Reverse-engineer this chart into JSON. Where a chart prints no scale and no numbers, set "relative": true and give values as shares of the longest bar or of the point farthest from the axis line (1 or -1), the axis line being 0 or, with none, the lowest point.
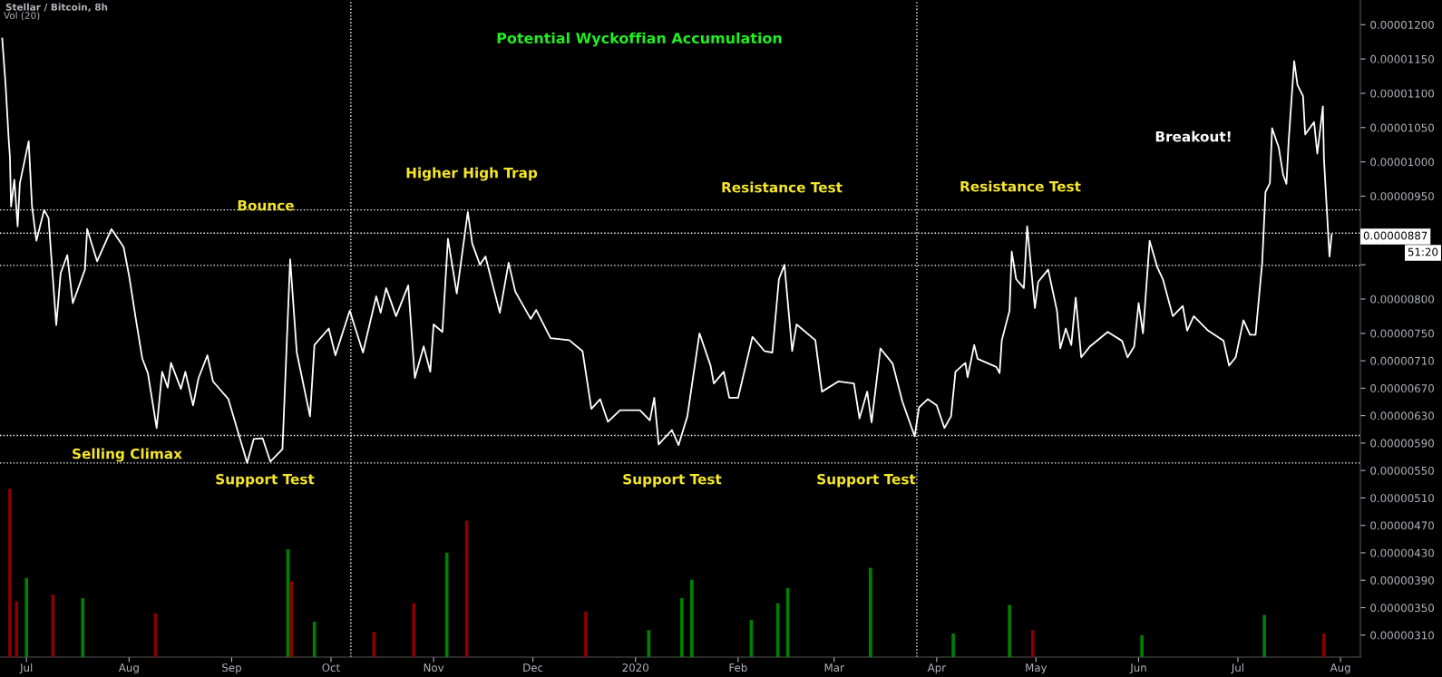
{
  "chart_data": [
    {
      "type": "line",
      "title": "Stellar / Bitcoin, 8h",
      "subtitle": "Potential Wyckoffian Accumulation",
      "x": [
        "2019-06-23T16:00",
        "2019-06-24T16:00",
        "2019-06-25T16:00",
        "2019-06-26T00:00",
        "2019-06-26T08:00",
        "2019-06-27T08:00",
        "2019-06-28T08:00",
        "2019-06-29T00:00",
        "2019-07-01T16:00",
        "2019-07-02T16:00",
        "2019-07-04T00:00",
        "2019-07-06T08:00",
        "2019-07-07T16:00",
        "2019-07-10T00:00",
        "2019-07-11T08:00",
        "2019-07-13T08:00",
        "2019-07-15T00:00",
        "2019-07-18T16:00",
        "2019-07-19T08:00",
        "2019-07-22T08:00",
        "2019-07-26T16:00",
        "2019-07-30T08:00",
        "2019-08-01T00:00",
        "2019-08-03T00:00",
        "2019-08-05T00:00",
        "2019-08-06T16:00",
        "2019-08-09T08:00",
        "2019-08-11T00:00",
        "2019-08-12T16:00",
        "2019-08-13T16:00",
        "2019-08-16T16:00",
        "2019-08-18T00:00",
        "2019-08-20T08:00",
        "2019-08-22T00:00",
        "2019-08-24T16:00",
        "2019-08-26T08:00",
        "2019-08-31T00:00",
        "2019-09-05T16:00",
        "2019-09-07T16:00",
        "2019-09-10T08:00",
        "2019-09-12T16:00",
        "2019-09-16T08:00",
        "2019-09-18T16:00",
        "2019-09-20T16:00",
        "2019-09-24T16:00",
        "2019-09-26T00:00",
        "2019-09-30T08:00",
        "2019-10-02T08:00",
        "2019-10-06T16:00",
        "2019-10-10T16:00",
        "2019-10-14T16:00",
        "2019-10-16T00:00",
        "2019-10-17T16:00",
        "2019-10-20T16:00",
        "2019-10-24T08:00",
        "2019-10-26T08:00",
        "2019-10-29T00:00",
        "2019-10-31T00:00",
        "2019-11-01T00:00",
        "2019-11-03T16:00",
        "2019-11-05T08:00",
        "2019-11-08T00:00",
        "2019-11-11T08:00",
        "2019-11-12T16:00",
        "2019-11-15T00:00",
        "2019-11-16T16:00",
        "2019-11-21T00:00",
        "2019-11-23T16:00",
        "2019-11-25T16:00",
        "2019-11-30T08:00",
        "2019-12-02T00:00",
        "2019-12-06T08:00",
        "2019-12-12T00:00",
        "2019-12-16T00:00",
        "2019-12-18T16:00",
        "2019-12-21T08:00",
        "2019-12-23T16:00",
        "2019-12-27T08:00",
        "2020-01-02T08:00",
        "2020-01-05T08:00",
        "2020-01-06T16:00",
        "2020-01-08T00:00",
        "2020-01-12T00:00",
        "2020-01-14T00:00",
        "2020-01-16T16:00",
        "2020-01-20T08:00",
        "2020-01-23T16:00",
        "2020-01-24T16:00",
        "2020-01-27T16:00",
        "2020-01-29T08:00",
        "2020-02-01T00:00",
        "2020-02-05T08:00",
        "2020-02-09T00:00",
        "2020-02-11T08:00",
        "2020-02-13T08:00",
        "2020-02-15T00:00",
        "2020-02-17T08:00",
        "2020-02-18T16:00",
        "2020-02-24T08:00",
        "2020-02-26T08:00",
        "2020-03-02T08:00",
        "2020-03-07T00:00",
        "2020-03-08T16:00",
        "2020-03-11T00:00",
        "2020-03-12T08:00",
        "2020-03-15T00:00",
        "2020-03-18T16:00",
        "2020-03-21T16:00",
        "2020-03-25T08:00",
        "2020-03-26T16:00",
        "2020-03-29T08:00",
        "2020-04-01T00:00",
        "2020-04-03T08:00",
        "2020-04-05T08:00",
        "2020-04-06T16:00",
        "2020-04-09T16:00",
        "2020-04-10T08:00",
        "2020-04-12T08:00",
        "2020-04-13T08:00",
        "2020-04-19T00:00",
        "2020-04-20T00:00",
        "2020-04-20T16:00",
        "2020-04-23T00:00",
        "2020-04-23T16:00",
        "2020-04-25T00:00",
        "2020-04-27T08:00",
        "2020-04-28T08:00",
        "2020-04-30T16:00",
        "2020-05-01T16:00",
        "2020-05-04T16:00",
        "2020-05-07T08:00",
        "2020-05-08T08:00",
        "2020-05-10T00:00",
        "2020-05-11T16:00",
        "2020-05-13T00:00",
        "2020-05-14T16:00",
        "2020-05-17T08:00",
        "2020-05-22T16:00",
        "2020-05-27T00:00",
        "2020-05-28T16:00",
        "2020-05-30T16:00",
        "2020-06-01T00:00",
        "2020-06-02T08:00",
        "2020-06-04T08:00",
        "2020-06-06T16:00",
        "2020-06-08T08:00",
        "2020-06-11T08:00",
        "2020-06-14T08:00",
        "2020-06-15T16:00",
        "2020-06-17T16:00",
        "2020-06-22T00:00",
        "2020-06-26T16:00",
        "2020-06-28T08:00",
        "2020-06-30T08:00",
        "2020-07-02T16:00",
        "2020-07-04T16:00",
        "2020-07-06T08:00",
        "2020-07-08T08:00",
        "2020-07-09T08:00",
        "2020-07-10T16:00",
        "2020-07-11T08:00",
        "2020-07-13T08:00",
        "2020-07-14T16:00",
        "2020-07-15T16:00",
        "2020-07-16T08:00",
        "2020-07-18T00:00",
        "2020-07-19T00:00",
        "2020-07-20T16:00",
        "2020-07-21T08:00",
        "2020-07-24T00:00",
        "2020-07-25T00:00",
        "2020-07-26T16:00",
        "2020-07-27T00:00",
        "2020-07-28T16:00",
        "2020-07-29T08:00"
      ],
      "series": [
        {
          "color": "#ffffff",
          "values": [
            1.18e-05,
            1.114e-05,
            1.03e-05,
            1.007e-05,
            9.35e-06,
            9.74e-06,
            9.06e-06,
            9.69e-06,
            1.03e-05,
            9.36e-06,
            8.85e-06,
            9.3e-06,
            9.18e-06,
            7.62e-06,
            8.38e-06,
            8.64e-06,
            7.94e-06,
            8.43e-06,
            9.02e-06,
            8.55e-06,
            9.02e-06,
            8.76e-06,
            8.34e-06,
            7.72e-06,
            7.13e-06,
            6.92e-06,
            6.12e-06,
            6.94e-06,
            6.71e-06,
            7.07e-06,
            6.69e-06,
            6.94e-06,
            6.45e-06,
            6.85e-06,
            7.18e-06,
            6.8e-06,
            6.54e-06,
            5.61e-06,
            5.96e-06,
            5.97e-06,
            5.63e-06,
            5.81e-06,
            8.58e-06,
            7.22e-06,
            6.29e-06,
            7.33e-06,
            7.57e-06,
            7.18e-06,
            7.83e-06,
            7.22e-06,
            8.04e-06,
            7.8e-06,
            8.16e-06,
            7.75e-06,
            8.2e-06,
            6.85e-06,
            7.31e-06,
            6.94e-06,
            7.63e-06,
            7.52e-06,
            8.88e-06,
            8.08e-06,
            9.27e-06,
            8.81e-06,
            8.5e-06,
            8.62e-06,
            7.8e-06,
            8.53e-06,
            8.11e-06,
            7.71e-06,
            7.84e-06,
            7.43e-06,
            7.4e-06,
            7.24e-06,
            6.4e-06,
            6.54e-06,
            6.21e-06,
            6.38e-06,
            6.38e-06,
            6.23e-06,
            6.56e-06,
            5.88e-06,
            6.09e-06,
            5.87e-06,
            6.29e-06,
            7.5e-06,
            7.03e-06,
            6.77e-06,
            6.94e-06,
            6.56e-06,
            6.56e-06,
            7.45e-06,
            7.24e-06,
            7.22e-06,
            8.29e-06,
            8.5e-06,
            7.24e-06,
            7.63e-06,
            7.4e-06,
            6.65e-06,
            6.8e-06,
            6.77e-06,
            6.26e-06,
            6.65e-06,
            6.2e-06,
            7.28e-06,
            7.06e-06,
            6.5e-06,
            6e-06,
            6.42e-06,
            6.54e-06,
            6.45e-06,
            6.12e-06,
            6.29e-06,
            6.94e-06,
            7.07e-06,
            6.86e-06,
            7.33e-06,
            7.13e-06,
            7.01e-06,
            6.92e-06,
            7.4e-06,
            7.83e-06,
            8.69e-06,
            8.29e-06,
            8.16e-06,
            9.06e-06,
            7.87e-06,
            8.25e-06,
            8.43e-06,
            7.83e-06,
            7.28e-06,
            7.57e-06,
            7.33e-06,
            8.02e-06,
            7.15e-06,
            7.31e-06,
            7.52e-06,
            7.39e-06,
            7.15e-06,
            7.31e-06,
            7.94e-06,
            7.5e-06,
            8.85e-06,
            8.46e-06,
            8.29e-06,
            7.75e-06,
            7.9e-06,
            7.54e-06,
            7.75e-06,
            7.54e-06,
            7.39e-06,
            7.03e-06,
            7.15e-06,
            7.69e-06,
            7.48e-06,
            7.48e-06,
            8.53e-06,
            9.56e-06,
            9.69e-06,
            1.049e-05,
            1.021e-05,
            9.81e-06,
            9.68e-06,
            1.03e-05,
            1.147e-05,
            1.112e-05,
            1.096e-05,
            1.04e-05,
            1.058e-05,
            1.012e-05,
            1.081e-05,
            1.004e-05,
            8.62e-06,
            8.94e-06
          ]
        }
      ],
      "xlim": [
        "2019-06-23",
        "2020-08-07"
      ],
      "xticks": [
        {
          "value": "2019-07-01",
          "label": "Jul"
        },
        {
          "value": "2019-08-01",
          "label": "Aug"
        },
        {
          "value": "2019-09-01",
          "label": "Sep"
        },
        {
          "value": "2019-10-01",
          "label": "Oct"
        },
        {
          "value": "2019-11-01",
          "label": "Nov"
        },
        {
          "value": "2019-12-01",
          "label": "Dec"
        },
        {
          "value": "2020-01-01",
          "label": "2020"
        },
        {
          "value": "2020-02-01",
          "label": "Feb"
        },
        {
          "value": "2020-03-01",
          "label": "Mar"
        },
        {
          "value": "2020-04-01",
          "label": "Apr"
        },
        {
          "value": "2020-05-01",
          "label": "May"
        },
        {
          "value": "2020-06-01",
          "label": "Jun"
        },
        {
          "value": "2020-07-01",
          "label": "Jul"
        },
        {
          "value": "2020-08-01",
          "label": "Aug"
        }
      ],
      "ylim": [
        2.78e-06,
        1.236e-05
      ],
      "yticks": [
        {
          "value": 1.2e-05,
          "label": "0.00001200"
        },
        {
          "value": 1.15e-05,
          "label": "0.00001150"
        },
        {
          "value": 1.1e-05,
          "label": "0.00001100"
        },
        {
          "value": 1.05e-05,
          "label": "0.00001050"
        },
        {
          "value": 1e-05,
          "label": "0.00001000"
        },
        {
          "value": 9.5e-06,
          "label": "0.00000950"
        },
        {
          "value": 9e-06,
          "label": null
        },
        {
          "value": 8.5e-06,
          "label": null
        },
        {
          "value": 8e-06,
          "label": "0.00000800"
        },
        {
          "value": 7.5e-06,
          "label": "0.00000750"
        },
        {
          "value": 7.1e-06,
          "label": "0.00000710"
        },
        {
          "value": 6.7e-06,
          "label": "0.00000670"
        },
        {
          "value": 6.3e-06,
          "label": "0.00000630"
        },
        {
          "value": 5.9e-06,
          "label": "0.00000590"
        },
        {
          "value": 5.5e-06,
          "label": "0.00000550"
        },
        {
          "value": 5.1e-06,
          "label": "0.00000510"
        },
        {
          "value": 4.7e-06,
          "label": "0.00000470"
        },
        {
          "value": 4.3e-06,
          "label": "0.00000430"
        },
        {
          "value": 3.9e-06,
          "label": "0.00000390"
        },
        {
          "value": 3.5e-06,
          "label": "0.00000350"
        },
        {
          "value": 3.1e-06,
          "label": "0.00000310"
        }
      ],
      "ref_lines": [
        {
          "axis": "y",
          "value": 9.3e-06,
          "color": "#ffffff",
          "line_style": "dotted"
        },
        {
          "axis": "y",
          "value": 8.96e-06,
          "color": "#ffffff",
          "line_style": "dotted"
        },
        {
          "axis": "y",
          "value": 8.49e-06,
          "color": "#ffffff",
          "line_style": "dotted"
        },
        {
          "axis": "y",
          "value": 6.01e-06,
          "color": "#ffffff",
          "line_style": "dotted"
        },
        {
          "axis": "y",
          "value": 5.61e-06,
          "color": "#ffffff",
          "line_style": "dotted"
        },
        {
          "axis": "x",
          "value": "2019-10-07",
          "color": "#ffffff",
          "line_style": "dotted"
        },
        {
          "axis": "x",
          "value": "2020-03-26",
          "color": "#ffffff",
          "line_style": "dotted"
        }
      ],
      "annotations": [
        "Vol (20)",
        "Bounce",
        "Higher High Trap",
        "Resistance Test",
        "Resistance Test",
        "Breakout!",
        "Selling Climax",
        "Support Test",
        "Support Test",
        "Support Test",
        "0.00000887",
        "51:20"
      ],
      "grid": false,
      "legend": false,
      "marker": "none",
      "line_style": "solid"
    },
    {
      "type": "bar",
      "relative": true,
      "tick_labels": false,
      "x": [
        "2019-06-26",
        "2019-06-28",
        "2019-07-01",
        "2019-07-09",
        "2019-07-18",
        "2019-08-09",
        "2019-09-18",
        "2019-09-19",
        "2019-09-26",
        "2019-10-14",
        "2019-10-26",
        "2019-11-05",
        "2019-11-11",
        "2019-12-17",
        "2020-01-05",
        "2020-01-15",
        "2020-01-18",
        "2020-02-05",
        "2020-02-13",
        "2020-02-16",
        "2020-03-12",
        "2020-04-06",
        "2020-04-23",
        "2020-04-30",
        "2020-06-02",
        "2020-07-09",
        "2020-07-27"
      ],
      "values": [
        1.0,
        0.33,
        0.47,
        0.37,
        0.35,
        0.26,
        0.64,
        0.45,
        0.21,
        0.15,
        0.32,
        0.62,
        0.81,
        0.27,
        0.16,
        0.35,
        0.46,
        0.22,
        0.32,
        0.41,
        0.53,
        0.14,
        0.31,
        0.16,
        0.13,
        0.25,
        0.14
      ],
      "colors": [
        "#8b0000",
        "#8b0000",
        "#008000",
        "#8b0000",
        "#008000",
        "#8b0000",
        "#008000",
        "#8b0000",
        "#008000",
        "#8b0000",
        "#8b0000",
        "#008000",
        "#8b0000",
        "#8b0000",
        "#008000",
        "#008000",
        "#008000",
        "#008000",
        "#008000",
        "#008000",
        "#008000",
        "#008000",
        "#008000",
        "#8b0000",
        "#008000",
        "#008000",
        "#8b0000"
      ],
      "xlim": [
        "2019-06-23",
        "2020-08-07"
      ]
    }
  ]
}
